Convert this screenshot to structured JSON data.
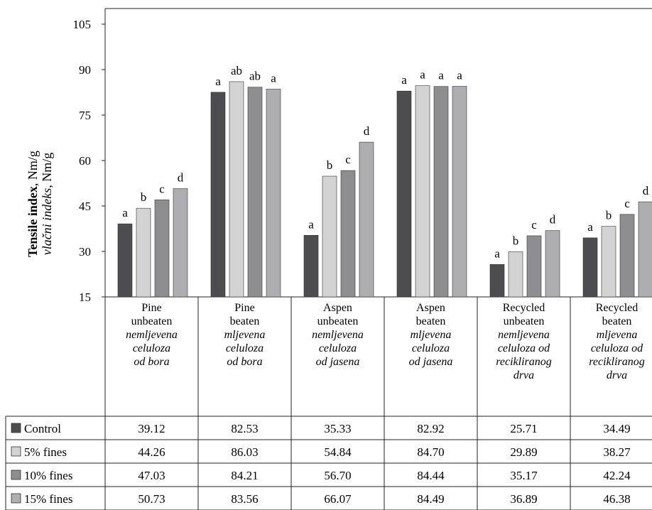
{
  "colors": {
    "control": "#4d4d4f",
    "fines5": "#d3d3d3",
    "fines10": "#8e8e90",
    "fines15": "#aeaeb0",
    "axis": "#222222"
  },
  "chart_data": {
    "type": "bar",
    "ylabel_bold": "Tensile index",
    "ylabel_rest": ", Nm/g",
    "ylabel_italic": "vlačni indeks",
    "ylabel_italic_rest": ", Nm/g",
    "ylim": [
      15,
      105
    ],
    "yticks": [
      "15",
      "30",
      "45",
      "60",
      "75",
      "90",
      "105"
    ],
    "categories": [
      {
        "lines": [
          "Pine",
          "unbeaten"
        ],
        "italic": [
          "nemljevena",
          "celuloza",
          "od bora"
        ]
      },
      {
        "lines": [
          "Pine",
          "beaten"
        ],
        "italic": [
          "mljevena",
          "celuloza",
          "od bora"
        ]
      },
      {
        "lines": [
          "Aspen",
          "unbeaten"
        ],
        "italic": [
          "nemljevena",
          "celuloza",
          "od jasena"
        ]
      },
      {
        "lines": [
          "Aspen",
          "beaten"
        ],
        "italic": [
          "mljevena",
          "celuloza",
          "od jasena"
        ]
      },
      {
        "lines": [
          "Recycled",
          "unbeaten"
        ],
        "italic": [
          "nemljevena",
          "celuloza od",
          "recikliranog",
          "drva"
        ]
      },
      {
        "lines": [
          "Recycled",
          "beaten"
        ],
        "italic": [
          "mljevena",
          "celuloza od",
          "recikliranog",
          "drva"
        ]
      }
    ],
    "series": [
      {
        "name": "Control",
        "values": [
          39.12,
          82.53,
          35.33,
          82.92,
          25.71,
          34.49
        ],
        "display": [
          "39.12",
          "82.53",
          "35.33",
          "82.92",
          "25.71",
          "34.49"
        ],
        "letters": [
          "a",
          "a",
          "a",
          "a",
          "a",
          "a"
        ]
      },
      {
        "name": "5% fines",
        "values": [
          44.26,
          86.03,
          54.84,
          84.7,
          29.89,
          38.27
        ],
        "display": [
          "44.26",
          "86.03",
          "54.84",
          "84.70",
          "29.89",
          "38.27"
        ],
        "letters": [
          "b",
          "ab",
          "b",
          "a",
          "b",
          "b"
        ]
      },
      {
        "name": "10% fines",
        "values": [
          47.03,
          84.21,
          56.7,
          84.44,
          35.17,
          42.24
        ],
        "display": [
          "47.03",
          "84.21",
          "56.70",
          "84.44",
          "35.17",
          "42.24"
        ],
        "letters": [
          "c",
          "ab",
          "c",
          "a",
          "c",
          "c"
        ]
      },
      {
        "name": "15% fines",
        "values": [
          50.73,
          83.56,
          66.07,
          84.49,
          36.89,
          46.38
        ],
        "display": [
          "50.73",
          "83.56",
          "66.07",
          "84.49",
          "36.89",
          "46.38"
        ],
        "letters": [
          "d",
          "a",
          "d",
          "a",
          "d",
          "d"
        ]
      }
    ]
  }
}
